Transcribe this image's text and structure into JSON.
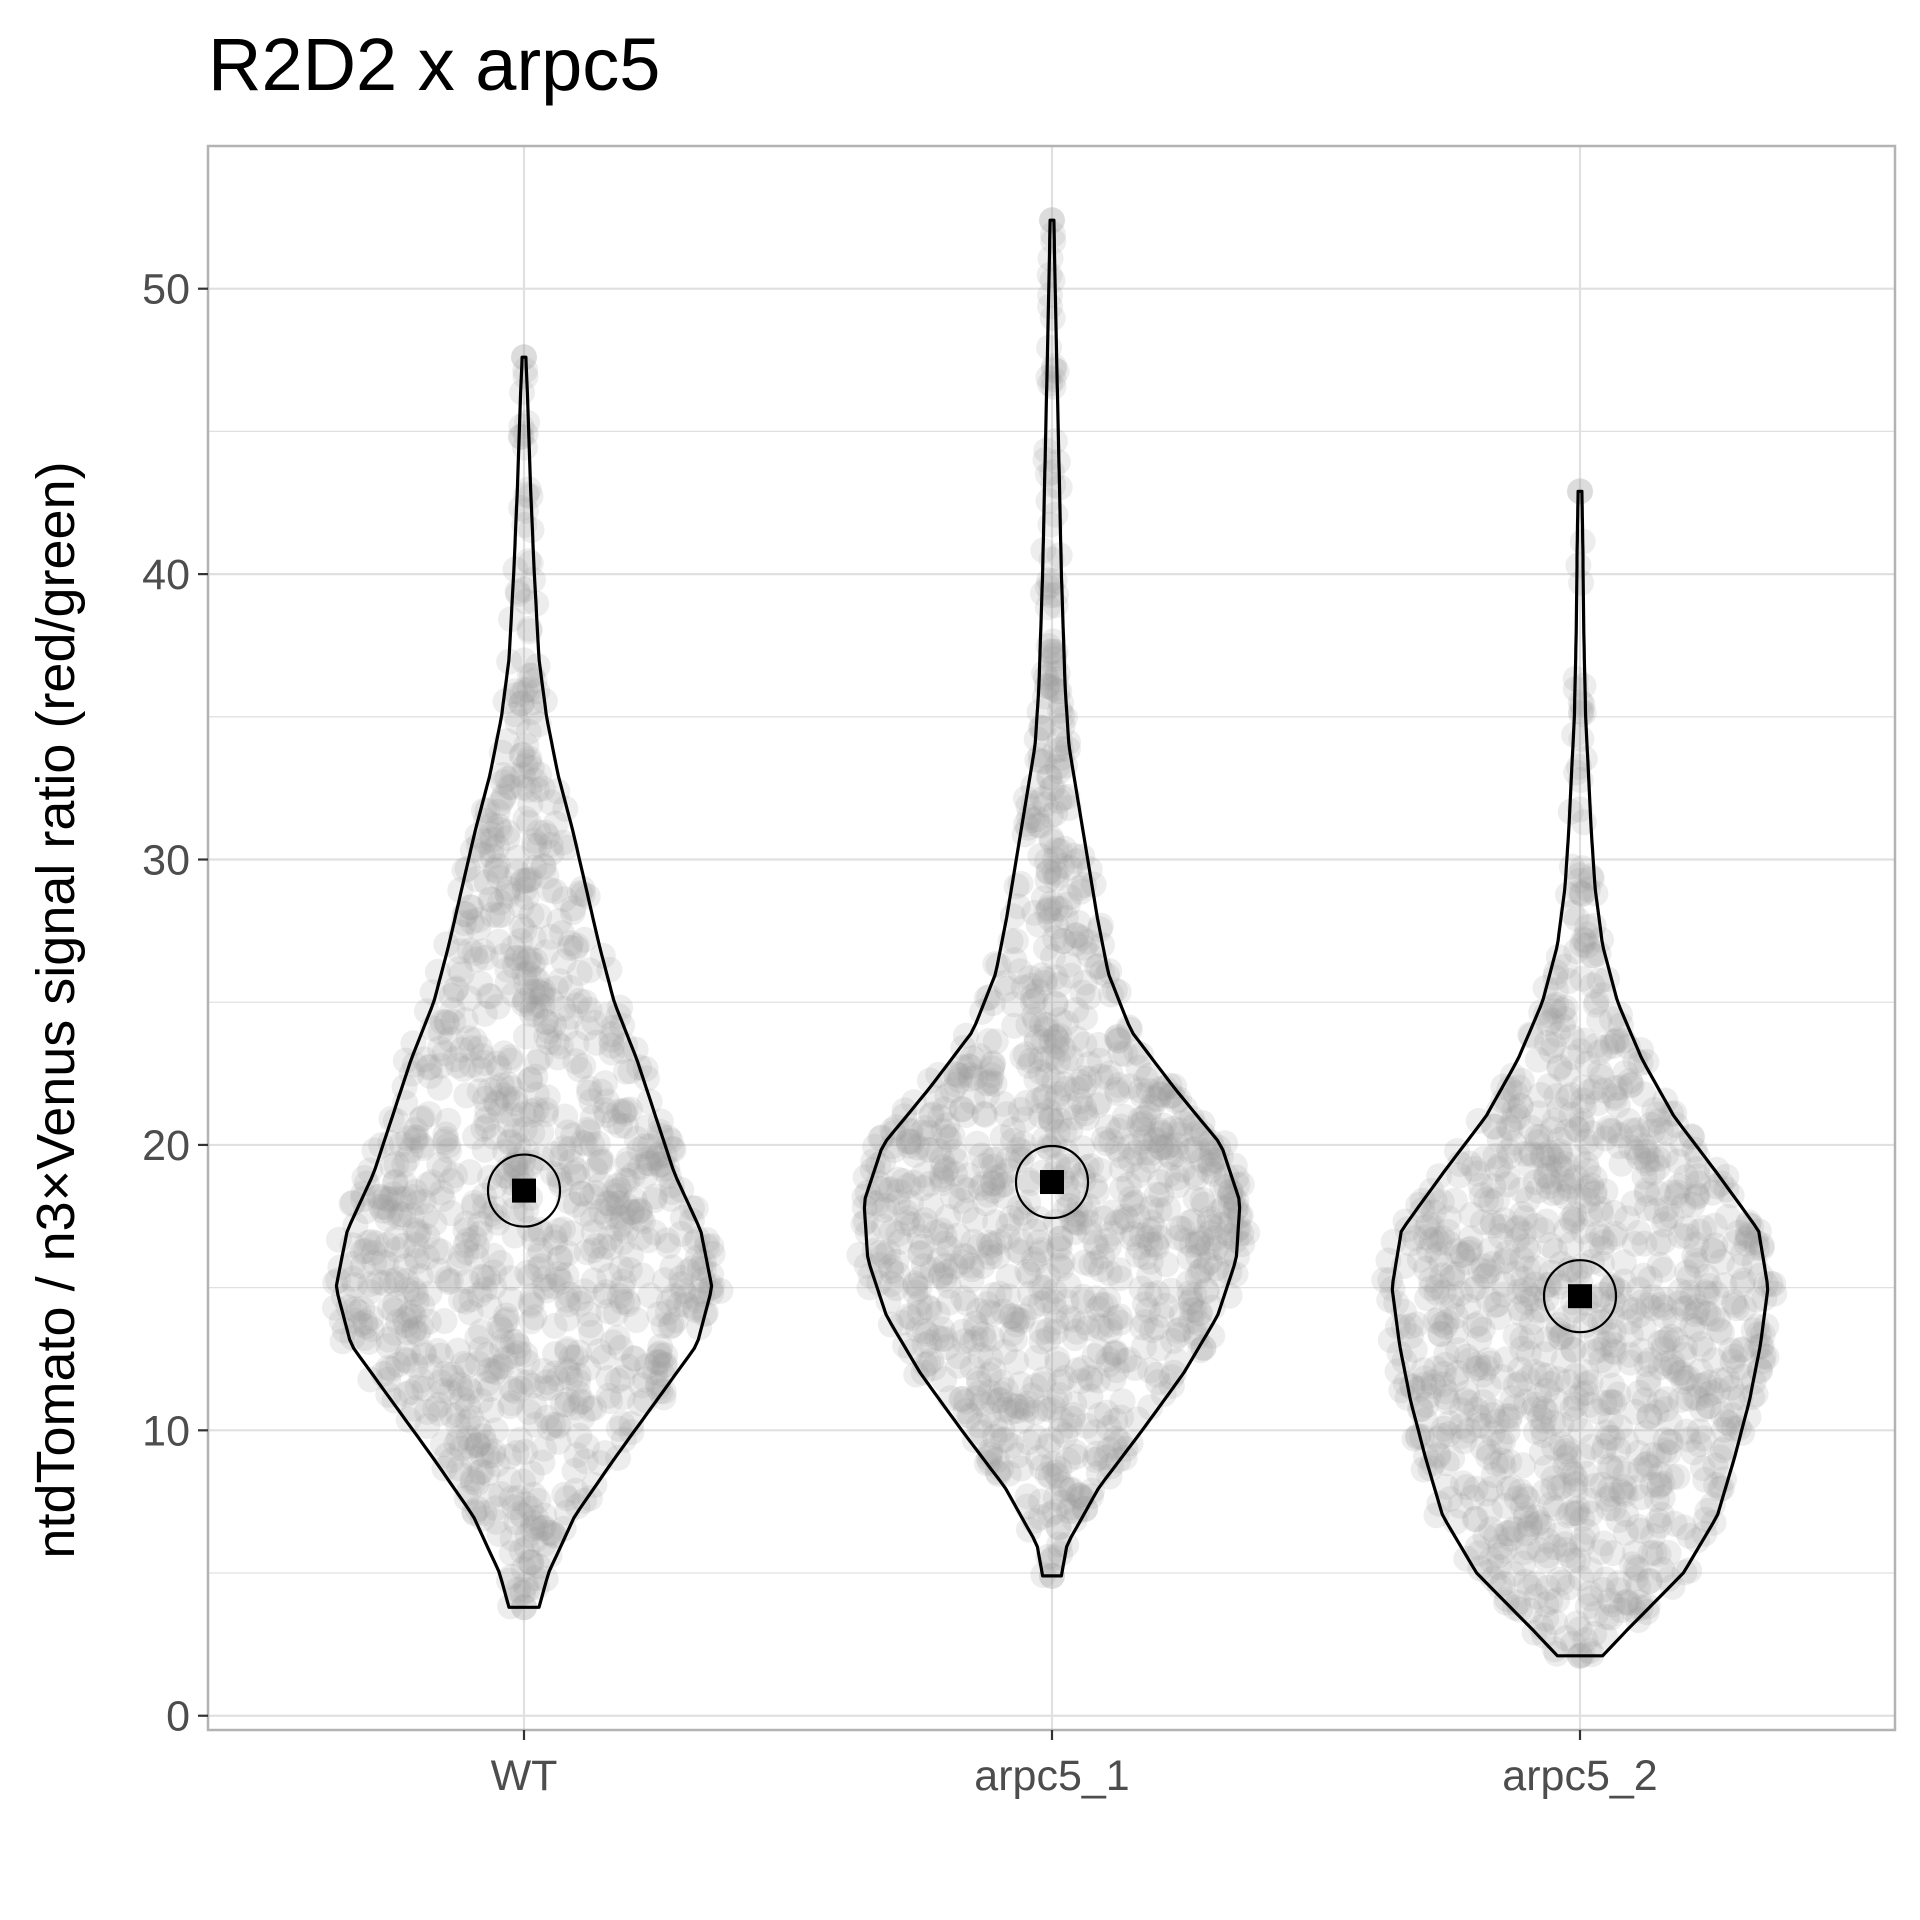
{
  "chart_data": {
    "type": "violin",
    "title": "R2D2 x arpc5",
    "xlabel": "",
    "ylabel": "ntdTomato / n3×Venus  signal ratio (red/green)",
    "ylim": [
      -0.5,
      55.0
    ],
    "yticks": [
      0,
      10,
      20,
      30,
      40,
      50
    ],
    "categories": [
      "WT",
      "arpc5_1",
      "arpc5_2"
    ],
    "grid": true,
    "legend": "none",
    "colors": {
      "points": "#9a9a9a",
      "violin_outline": "#000000",
      "summary": "#000000",
      "grid": "#e0e0e0",
      "panel_border": "#b3b3b3"
    },
    "groups": [
      {
        "name": "WT",
        "min": 3.8,
        "max": 47.6,
        "mean": 18.4,
        "density_profile": [
          [
            3.8,
            0.08
          ],
          [
            5,
            0.13
          ],
          [
            7,
            0.27
          ],
          [
            9,
            0.48
          ],
          [
            11,
            0.7
          ],
          [
            13,
            0.92
          ],
          [
            15,
            1.0
          ],
          [
            17,
            0.94
          ],
          [
            19,
            0.8
          ],
          [
            21,
            0.7
          ],
          [
            23,
            0.6
          ],
          [
            25,
            0.48
          ],
          [
            27,
            0.4
          ],
          [
            29,
            0.33
          ],
          [
            31,
            0.26
          ],
          [
            33,
            0.18
          ],
          [
            35,
            0.12
          ],
          [
            37,
            0.08
          ],
          [
            40,
            0.055
          ],
          [
            43,
            0.035
          ],
          [
            46,
            0.02
          ],
          [
            47.6,
            0.01
          ]
        ]
      },
      {
        "name": "arpc5_1",
        "min": 4.9,
        "max": 52.4,
        "mean": 18.7,
        "density_profile": [
          [
            4.9,
            0.05
          ],
          [
            6,
            0.08
          ],
          [
            8,
            0.25
          ],
          [
            10,
            0.48
          ],
          [
            12,
            0.7
          ],
          [
            14,
            0.88
          ],
          [
            16,
            0.98
          ],
          [
            18,
            1.0
          ],
          [
            20,
            0.9
          ],
          [
            22,
            0.65
          ],
          [
            24,
            0.42
          ],
          [
            26,
            0.3
          ],
          [
            28,
            0.24
          ],
          [
            30,
            0.19
          ],
          [
            32,
            0.14
          ],
          [
            34,
            0.09
          ],
          [
            36,
            0.07
          ],
          [
            38,
            0.06
          ],
          [
            40,
            0.05
          ],
          [
            43,
            0.04
          ],
          [
            46,
            0.03
          ],
          [
            49,
            0.02
          ],
          [
            52.4,
            0.01
          ]
        ]
      },
      {
        "name": "arpc5_2",
        "min": 2.1,
        "max": 42.9,
        "mean": 14.7,
        "density_profile": [
          [
            2.1,
            0.12
          ],
          [
            3,
            0.25
          ],
          [
            5,
            0.55
          ],
          [
            7,
            0.73
          ],
          [
            9,
            0.82
          ],
          [
            11,
            0.9
          ],
          [
            13,
            0.96
          ],
          [
            15,
            1.0
          ],
          [
            17,
            0.95
          ],
          [
            19,
            0.73
          ],
          [
            21,
            0.5
          ],
          [
            23,
            0.33
          ],
          [
            25,
            0.2
          ],
          [
            27,
            0.12
          ],
          [
            29,
            0.08
          ],
          [
            31,
            0.06
          ],
          [
            33,
            0.045
          ],
          [
            35,
            0.03
          ],
          [
            38,
            0.02
          ],
          [
            41,
            0.015
          ],
          [
            42.9,
            0.01
          ]
        ]
      }
    ]
  }
}
